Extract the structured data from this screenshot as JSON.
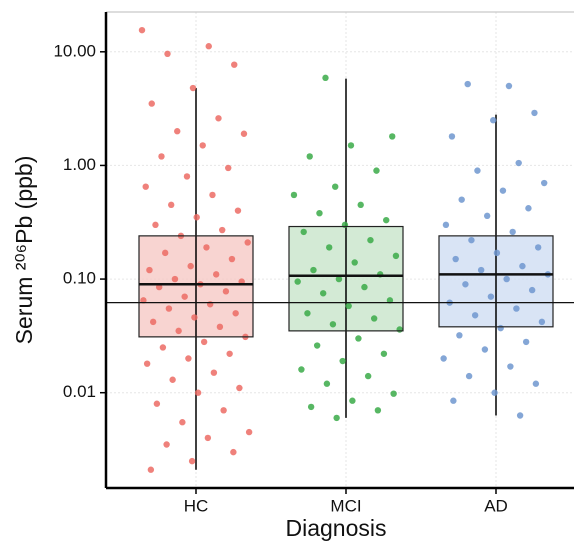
{
  "chart_data": {
    "type": "box",
    "y_label": "Serum ²⁰⁶Pb (ppb)",
    "x_label": "Diagnosis",
    "categories": [
      "HC",
      "MCI",
      "AD"
    ],
    "colors": [
      "#ec6b64",
      "#3aaa48",
      "#6f97cf"
    ],
    "box_colors": [
      "#f6c9c6",
      "#c8e5cb",
      "#cfddf2"
    ],
    "log_scale": true,
    "grid": true,
    "ylim": [
      0.00145,
      22.4
    ],
    "yticks": [
      {
        "value": 10,
        "label": "10.00"
      },
      {
        "value": 1,
        "label": "1.00"
      },
      {
        "value": 0.1,
        "label": "0.10"
      },
      {
        "value": 0.01,
        "label": "0.01"
      }
    ],
    "hline": 0.062,
    "boxes": [
      {
        "low": 0.0021,
        "q1": 0.031,
        "median": 0.09,
        "q3": 0.24,
        "high": 4.8
      },
      {
        "low": 0.006,
        "q1": 0.035,
        "median": 0.107,
        "q3": 0.29,
        "high": 5.8
      },
      {
        "low": 0.0063,
        "q1": 0.038,
        "median": 0.11,
        "q3": 0.24,
        "high": 2.8
      }
    ],
    "points": [
      [
        15.5,
        11.2,
        9.6,
        7.7,
        4.8,
        3.5,
        2.6,
        2.0,
        1.9,
        1.5,
        1.2,
        0.95,
        0.8,
        0.65,
        0.55,
        0.45,
        0.4,
        0.35,
        0.3,
        0.27,
        0.24,
        0.21,
        0.19,
        0.17,
        0.15,
        0.13,
        0.12,
        0.11,
        0.1,
        0.095,
        0.09,
        0.085,
        0.078,
        0.07,
        0.065,
        0.06,
        0.055,
        0.05,
        0.046,
        0.042,
        0.038,
        0.035,
        0.031,
        0.028,
        0.025,
        0.022,
        0.02,
        0.018,
        0.015,
        0.013,
        0.011,
        0.01,
        0.008,
        0.007,
        0.0055,
        0.0045,
        0.004,
        0.0035,
        0.003,
        0.0025,
        0.0021
      ],
      [
        5.9,
        1.8,
        1.5,
        1.2,
        0.9,
        0.65,
        0.55,
        0.45,
        0.38,
        0.33,
        0.3,
        0.26,
        0.22,
        0.19,
        0.16,
        0.14,
        0.12,
        0.11,
        0.1,
        0.095,
        0.085,
        0.075,
        0.065,
        0.058,
        0.05,
        0.045,
        0.04,
        0.036,
        0.03,
        0.026,
        0.022,
        0.019,
        0.016,
        0.014,
        0.012,
        0.0098,
        0.0085,
        0.0075,
        0.007,
        0.006
      ],
      [
        5.0,
        5.2,
        2.9,
        2.5,
        1.8,
        1.05,
        0.9,
        0.7,
        0.6,
        0.5,
        0.42,
        0.36,
        0.3,
        0.26,
        0.22,
        0.19,
        0.17,
        0.15,
        0.13,
        0.12,
        0.11,
        0.1,
        0.09,
        0.08,
        0.07,
        0.062,
        0.055,
        0.048,
        0.042,
        0.037,
        0.032,
        0.028,
        0.024,
        0.02,
        0.017,
        0.014,
        0.012,
        0.01,
        0.0085,
        0.0063
      ]
    ]
  }
}
